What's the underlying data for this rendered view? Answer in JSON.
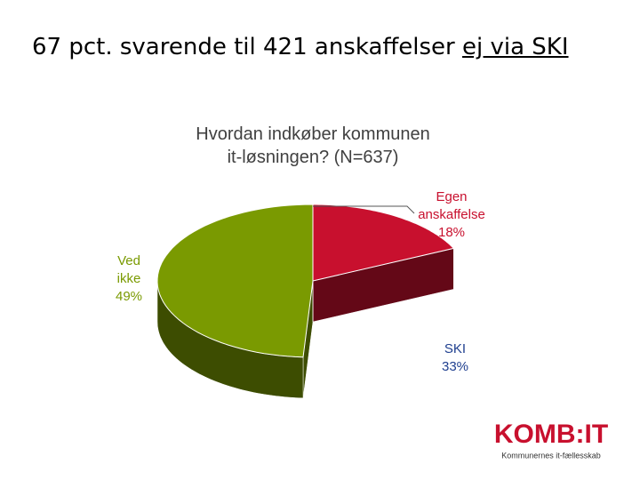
{
  "slide": {
    "heading": "67 pct. svarende til 421 anskaffelser",
    "heading_emphasis": "ej via SKI"
  },
  "chart_data": {
    "type": "pie",
    "title": "Hvordan indkøber kommunen it-løsningen? (N=637)",
    "categories": [
      "Egen anskaffelse",
      "SKI",
      "Ved ikke"
    ],
    "values": [
      18,
      33,
      49
    ],
    "value_labels": [
      "18%",
      "33%",
      "49%"
    ],
    "colors": [
      "#c8102e",
      "#ffffff",
      "#7a9a01"
    ],
    "label_colors": [
      "#c8102e",
      "#1f3f8f",
      "#7a9a01"
    ]
  },
  "logo": {
    "name": "KOMB:IT",
    "tagline": "Kommunernes it-fællesskab"
  }
}
